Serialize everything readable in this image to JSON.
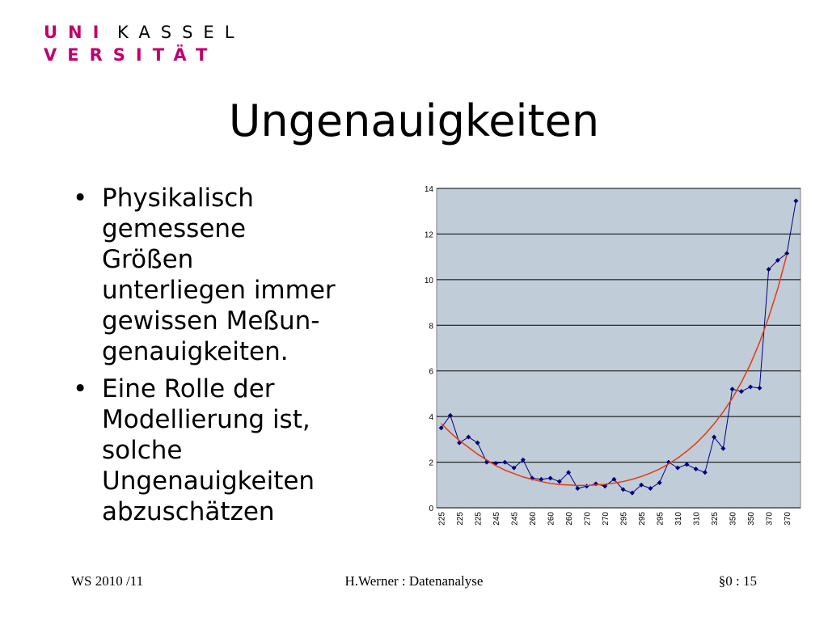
{
  "logo": {
    "uni": "UNI",
    "kassel": "KASSEL",
    "versitaet": "VERSITÄT"
  },
  "title": "Ungenauigkeiten",
  "bullets": [
    [
      "Physikalisch",
      "gemessene",
      "Größen",
      "unterliegen immer",
      "gewissen Meßun-",
      "genauigkeiten."
    ],
    [
      "Eine Rolle der",
      "Modellierung ist,",
      "solche",
      "Ungenauigkeiten",
      "abzuschätzen"
    ]
  ],
  "footer": {
    "left": "WS 2010 /11",
    "center": "H.Werner : Datenanalyse",
    "right": "§0 : 15"
  },
  "chart_data": {
    "type": "line",
    "categories": [
      "225",
      null,
      "225",
      null,
      "225",
      null,
      "245",
      null,
      "245",
      null,
      "260",
      null,
      "260",
      null,
      "260",
      null,
      "270",
      null,
      "270",
      null,
      "295",
      null,
      "295",
      null,
      "295",
      null,
      "310",
      null,
      "310",
      null,
      "325",
      null,
      "350",
      null,
      "350",
      null,
      "370",
      null,
      "370",
      null
    ],
    "series": [
      {
        "color": "#000080",
        "values": [
          3.5,
          4.05,
          2.85,
          3.1,
          2.85,
          2.0,
          1.95,
          2.0,
          1.75,
          2.1,
          1.3,
          1.25,
          1.3,
          1.15,
          1.55,
          0.85,
          0.95,
          1.05,
          0.95,
          1.25,
          0.8,
          0.65,
          1.0,
          0.85,
          1.1,
          2.0,
          1.75,
          1.9,
          1.7,
          1.55,
          3.1,
          2.6,
          5.2,
          5.1,
          5.3,
          5.25,
          10.45,
          10.85,
          11.15,
          13.45
        ]
      },
      {
        "color": "#e03c10",
        "values": [
          3.7,
          3.3,
          2.95,
          2.65,
          2.35,
          2.1,
          1.85,
          1.65,
          1.5,
          1.35,
          1.25,
          1.15,
          1.07,
          1.02,
          1.0,
          0.98,
          0.98,
          1.0,
          1.03,
          1.08,
          1.15,
          1.25,
          1.37,
          1.52,
          1.7,
          1.92,
          2.18,
          2.48,
          2.82,
          3.22,
          3.68,
          4.2,
          4.8,
          5.5,
          6.3,
          7.25,
          8.35,
          9.6,
          11.1,
          null
        ]
      }
    ],
    "ylim": [
      0,
      14
    ],
    "yticks": [
      0,
      2,
      4,
      6,
      8,
      10,
      12,
      14
    ],
    "grid": true,
    "plot_background": "#c0ccd8"
  }
}
